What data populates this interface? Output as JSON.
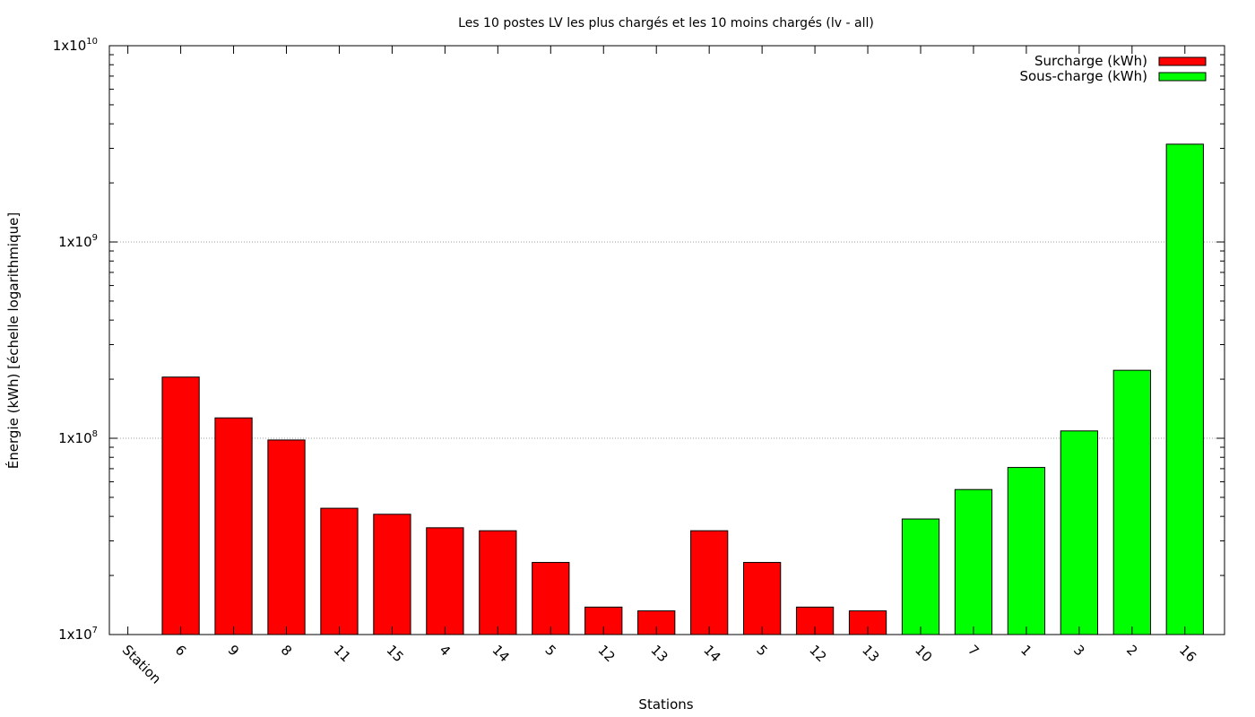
{
  "chart_data": {
    "type": "bar",
    "title": "Les 10 postes LV les plus chargés et les 10 moins chargés (lv - all)",
    "xlabel": "Stations",
    "ylabel": "Énergie (kWh) [échelle logarithmique]",
    "y_scale": "log",
    "ylim": [
      10000000,
      10000000000
    ],
    "yticks": [
      {
        "value": 10000000,
        "base": "1x10",
        "exp": "7"
      },
      {
        "value": 100000000,
        "base": "1x10",
        "exp": "8"
      },
      {
        "value": 1000000000,
        "base": "1x10",
        "exp": "9"
      },
      {
        "value": 10000000000,
        "base": "1x10",
        "exp": "10"
      }
    ],
    "grid": true,
    "legend_position": "top-right",
    "categories": [
      "Station",
      "6",
      "9",
      "8",
      "11",
      "15",
      "4",
      "14",
      "5",
      "12",
      "13",
      "14",
      "5",
      "12",
      "13",
      "10",
      "7",
      "1",
      "3",
      "2",
      "16"
    ],
    "series": [
      {
        "name": "Surcharge (kWh)",
        "color": "#ff0000",
        "values": [
          null,
          205000000,
          127000000,
          98000000,
          44000000,
          41000000,
          35000000,
          33800000,
          23300000,
          13800000,
          13200000,
          33800000,
          23300000,
          13800000,
          13200000,
          null,
          null,
          null,
          null,
          null,
          null
        ]
      },
      {
        "name": "Sous-charge (kWh)",
        "color": "#00ff00",
        "values": [
          null,
          null,
          null,
          null,
          null,
          null,
          null,
          null,
          null,
          null,
          null,
          null,
          null,
          null,
          null,
          38800000,
          54800000,
          71000000,
          109000000,
          222000000,
          3150000000
        ]
      }
    ]
  }
}
